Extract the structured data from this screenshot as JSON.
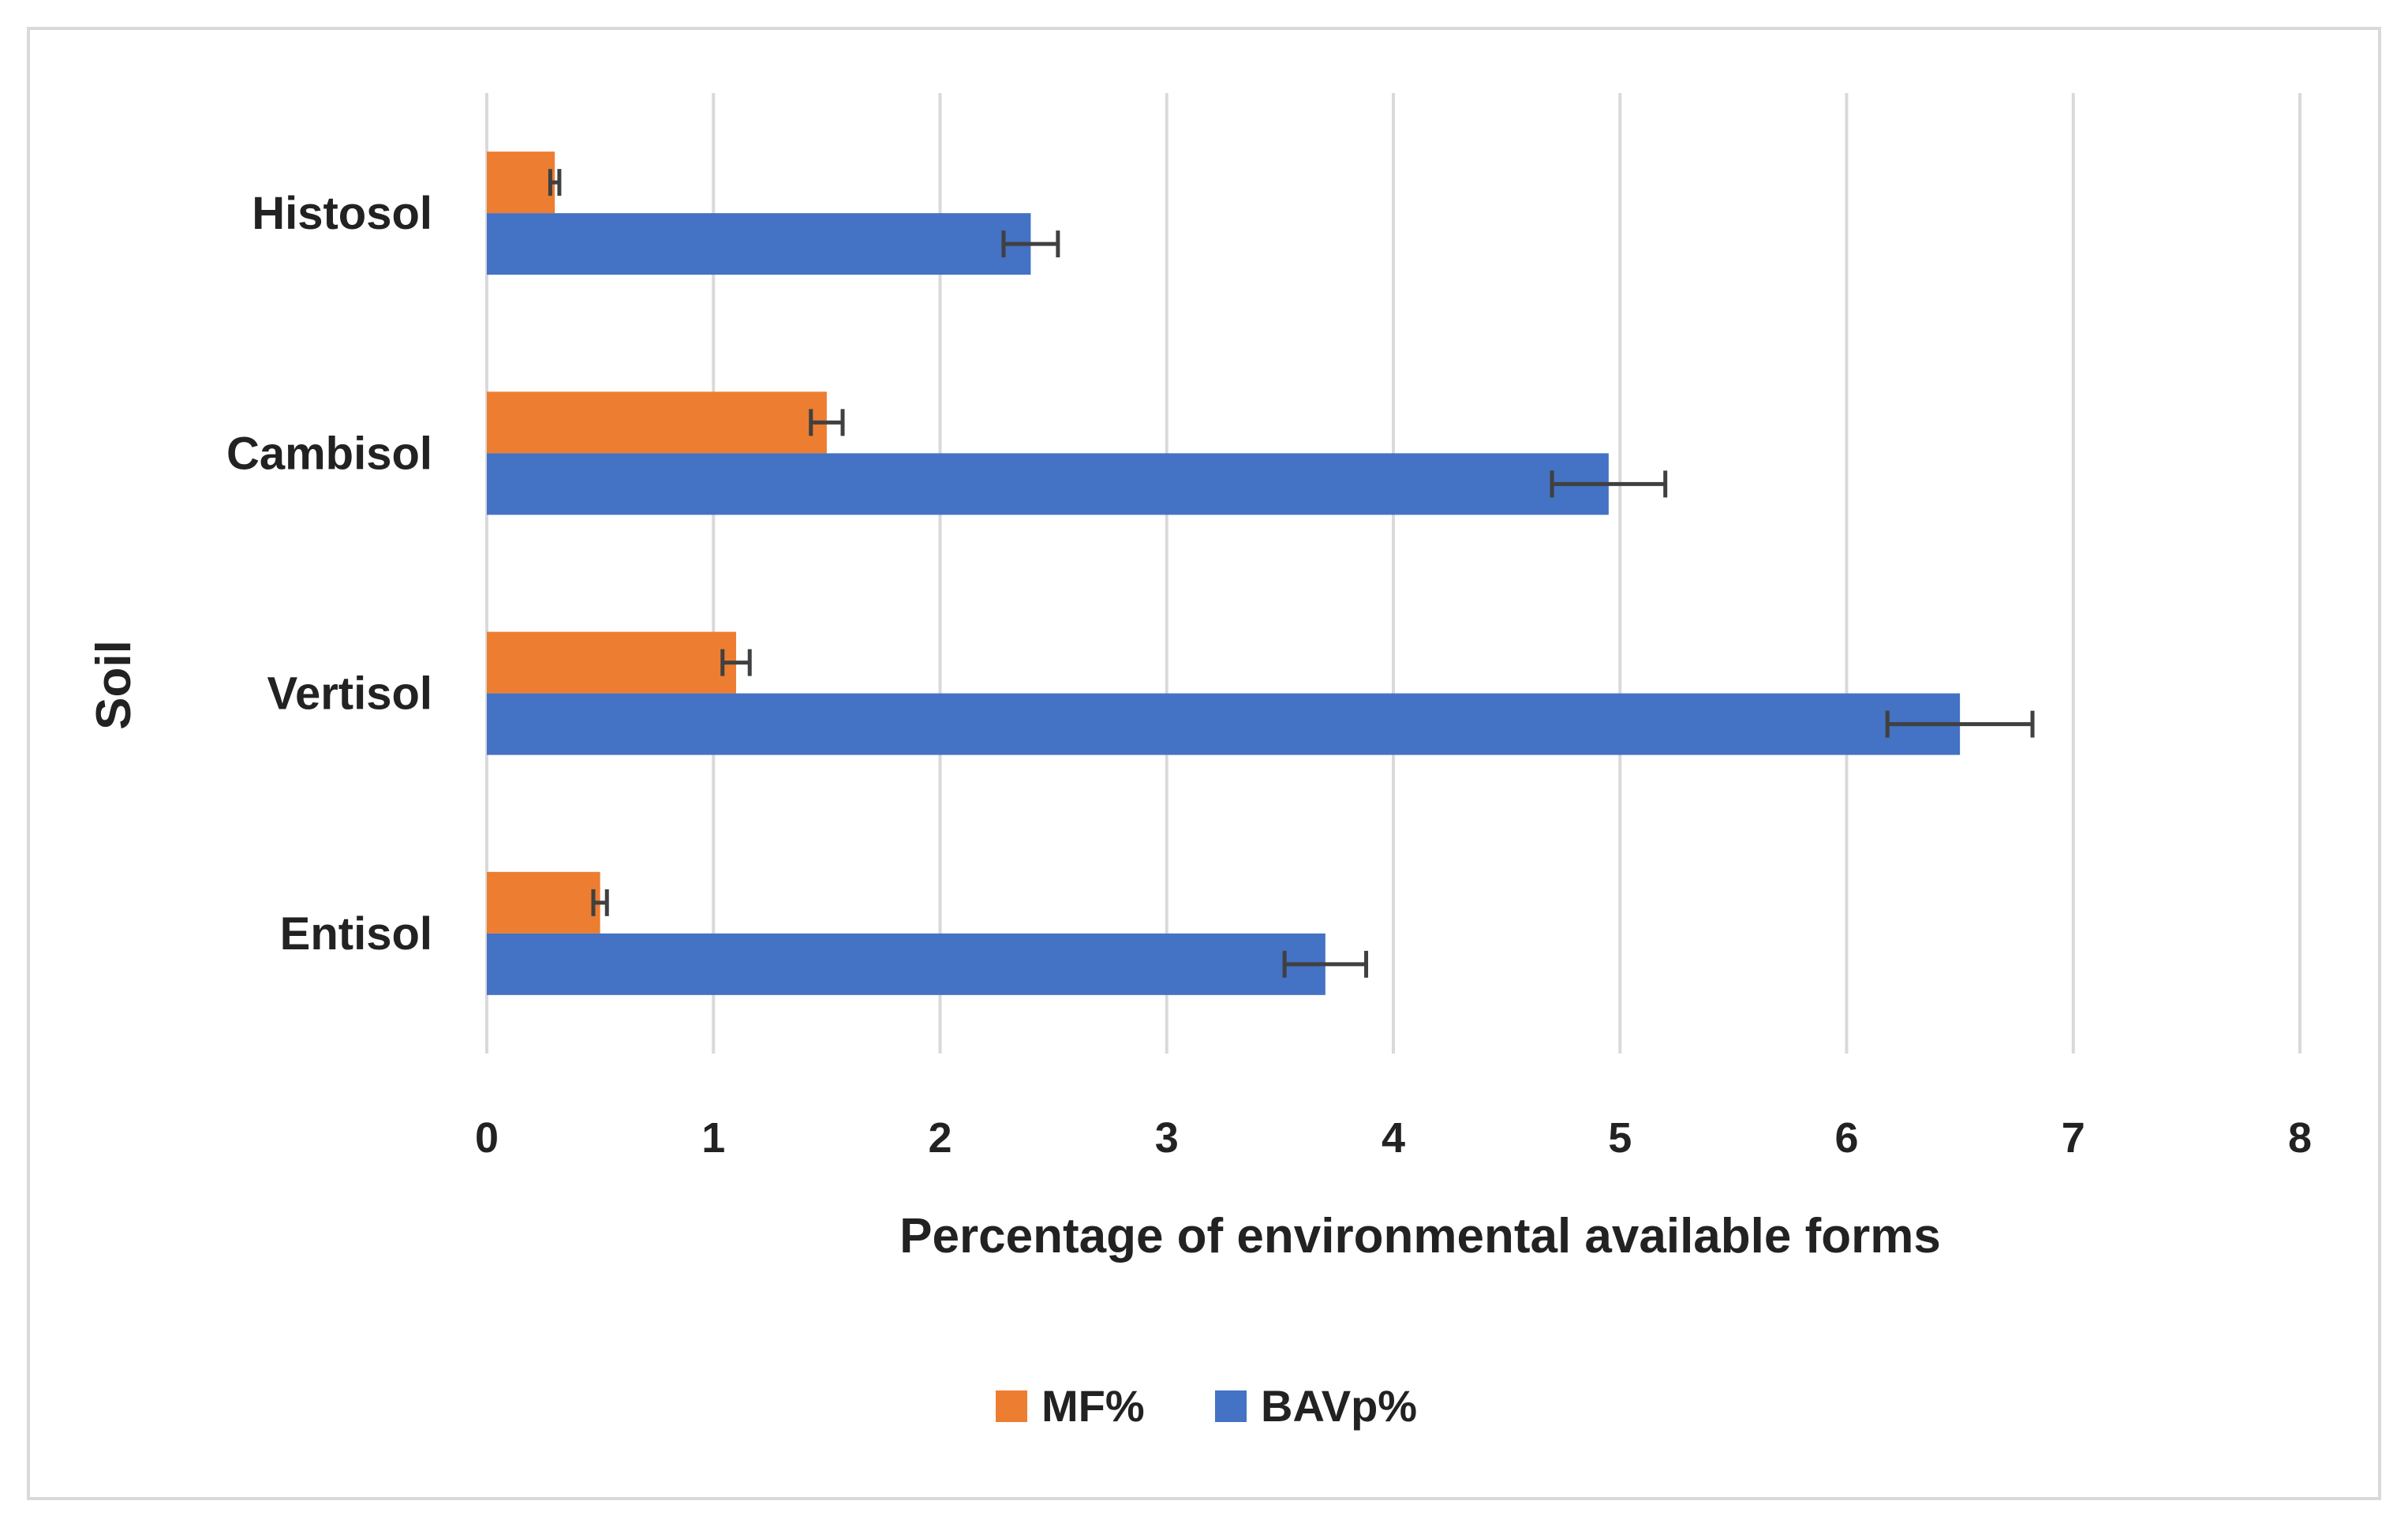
{
  "chart_data": {
    "type": "bar",
    "orientation": "horizontal",
    "categories": [
      "Histosol",
      "Cambisol",
      "Vertisol",
      "Entisol"
    ],
    "series": [
      {
        "name": "MF%",
        "color": "#ed7d31",
        "values": [
          0.3,
          1.5,
          1.1,
          0.5
        ],
        "errors": [
          0.02,
          0.07,
          0.06,
          0.03
        ]
      },
      {
        "name": "BAVp%",
        "color": "#4472c4",
        "values": [
          2.4,
          4.95,
          6.5,
          3.7
        ],
        "errors": [
          0.12,
          0.25,
          0.32,
          0.18
        ]
      }
    ],
    "xlabel": "Percentage of environmental available forms",
    "ylabel": "Soil",
    "xlim": [
      0,
      8
    ],
    "xticks": [
      "0",
      "1",
      "2",
      "3",
      "4",
      "5",
      "6",
      "7",
      "8"
    ],
    "grid": "vertical",
    "legend_position": "bottom"
  }
}
